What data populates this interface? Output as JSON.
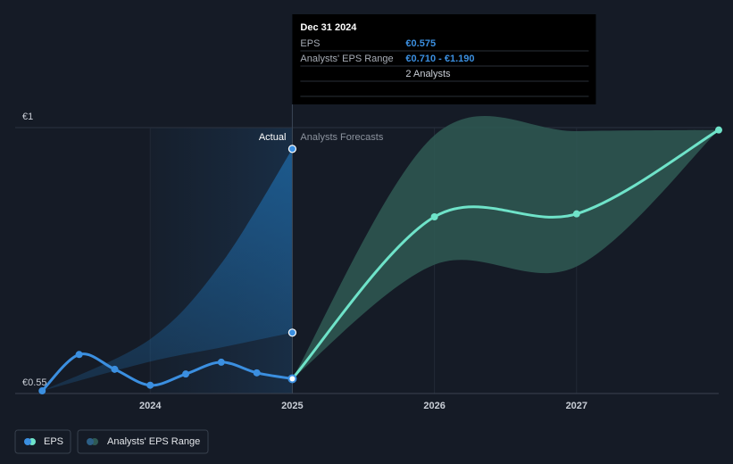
{
  "chart_data": {
    "type": "line",
    "xlim": [
      2023.05,
      2028
    ],
    "xticks": [
      2024,
      2025,
      2026,
      2027
    ],
    "ylim": [
      0.55,
      1
    ],
    "yticks": [
      {
        "value": 0.55,
        "label": "€0.55"
      },
      {
        "value": 1,
        "label": "€1"
      }
    ],
    "grid": true,
    "series": [
      {
        "name": "EPS",
        "color": "#3b8fe0",
        "x": [
          2023.24,
          2023.5,
          2023.75,
          2024,
          2024.25,
          2024.5,
          2024.75,
          2025
        ],
        "values": [
          0.5545,
          0.616,
          0.591,
          0.564,
          0.583,
          0.603,
          0.585,
          0.575
        ]
      },
      {
        "name": "Analysts' EPS Range",
        "color": "#2f5953",
        "x": [
          2025,
          2026,
          2027,
          2028
        ],
        "low": [
          0.575,
          0.768,
          0.765,
          0.996
        ],
        "high": [
          0.575,
          0.987,
          0.994,
          0.996
        ]
      }
    ],
    "forecast": {
      "color": "#6fe3c9",
      "x": [
        2025,
        2026,
        2027,
        2028
      ],
      "values": [
        0.575,
        0.849,
        0.854,
        0.996
      ]
    },
    "past_range": {
      "color": "#1f6fb0",
      "x": [
        2023.24,
        2024,
        2024.5,
        2025
      ],
      "low": [
        0.5545,
        0.604,
        0.628,
        0.653
      ],
      "high": [
        0.5545,
        0.642,
        0.77,
        0.964
      ]
    },
    "annotations": {
      "actual": "Actual",
      "forecast": "Analysts Forecasts"
    },
    "tooltip": {
      "title": "Dec 31 2024",
      "eps_label": "EPS",
      "eps": "€0.575",
      "range_label": "Analysts' EPS Range",
      "range": "€0.710 - €1.190",
      "analysts": "2 Analysts"
    }
  }
}
